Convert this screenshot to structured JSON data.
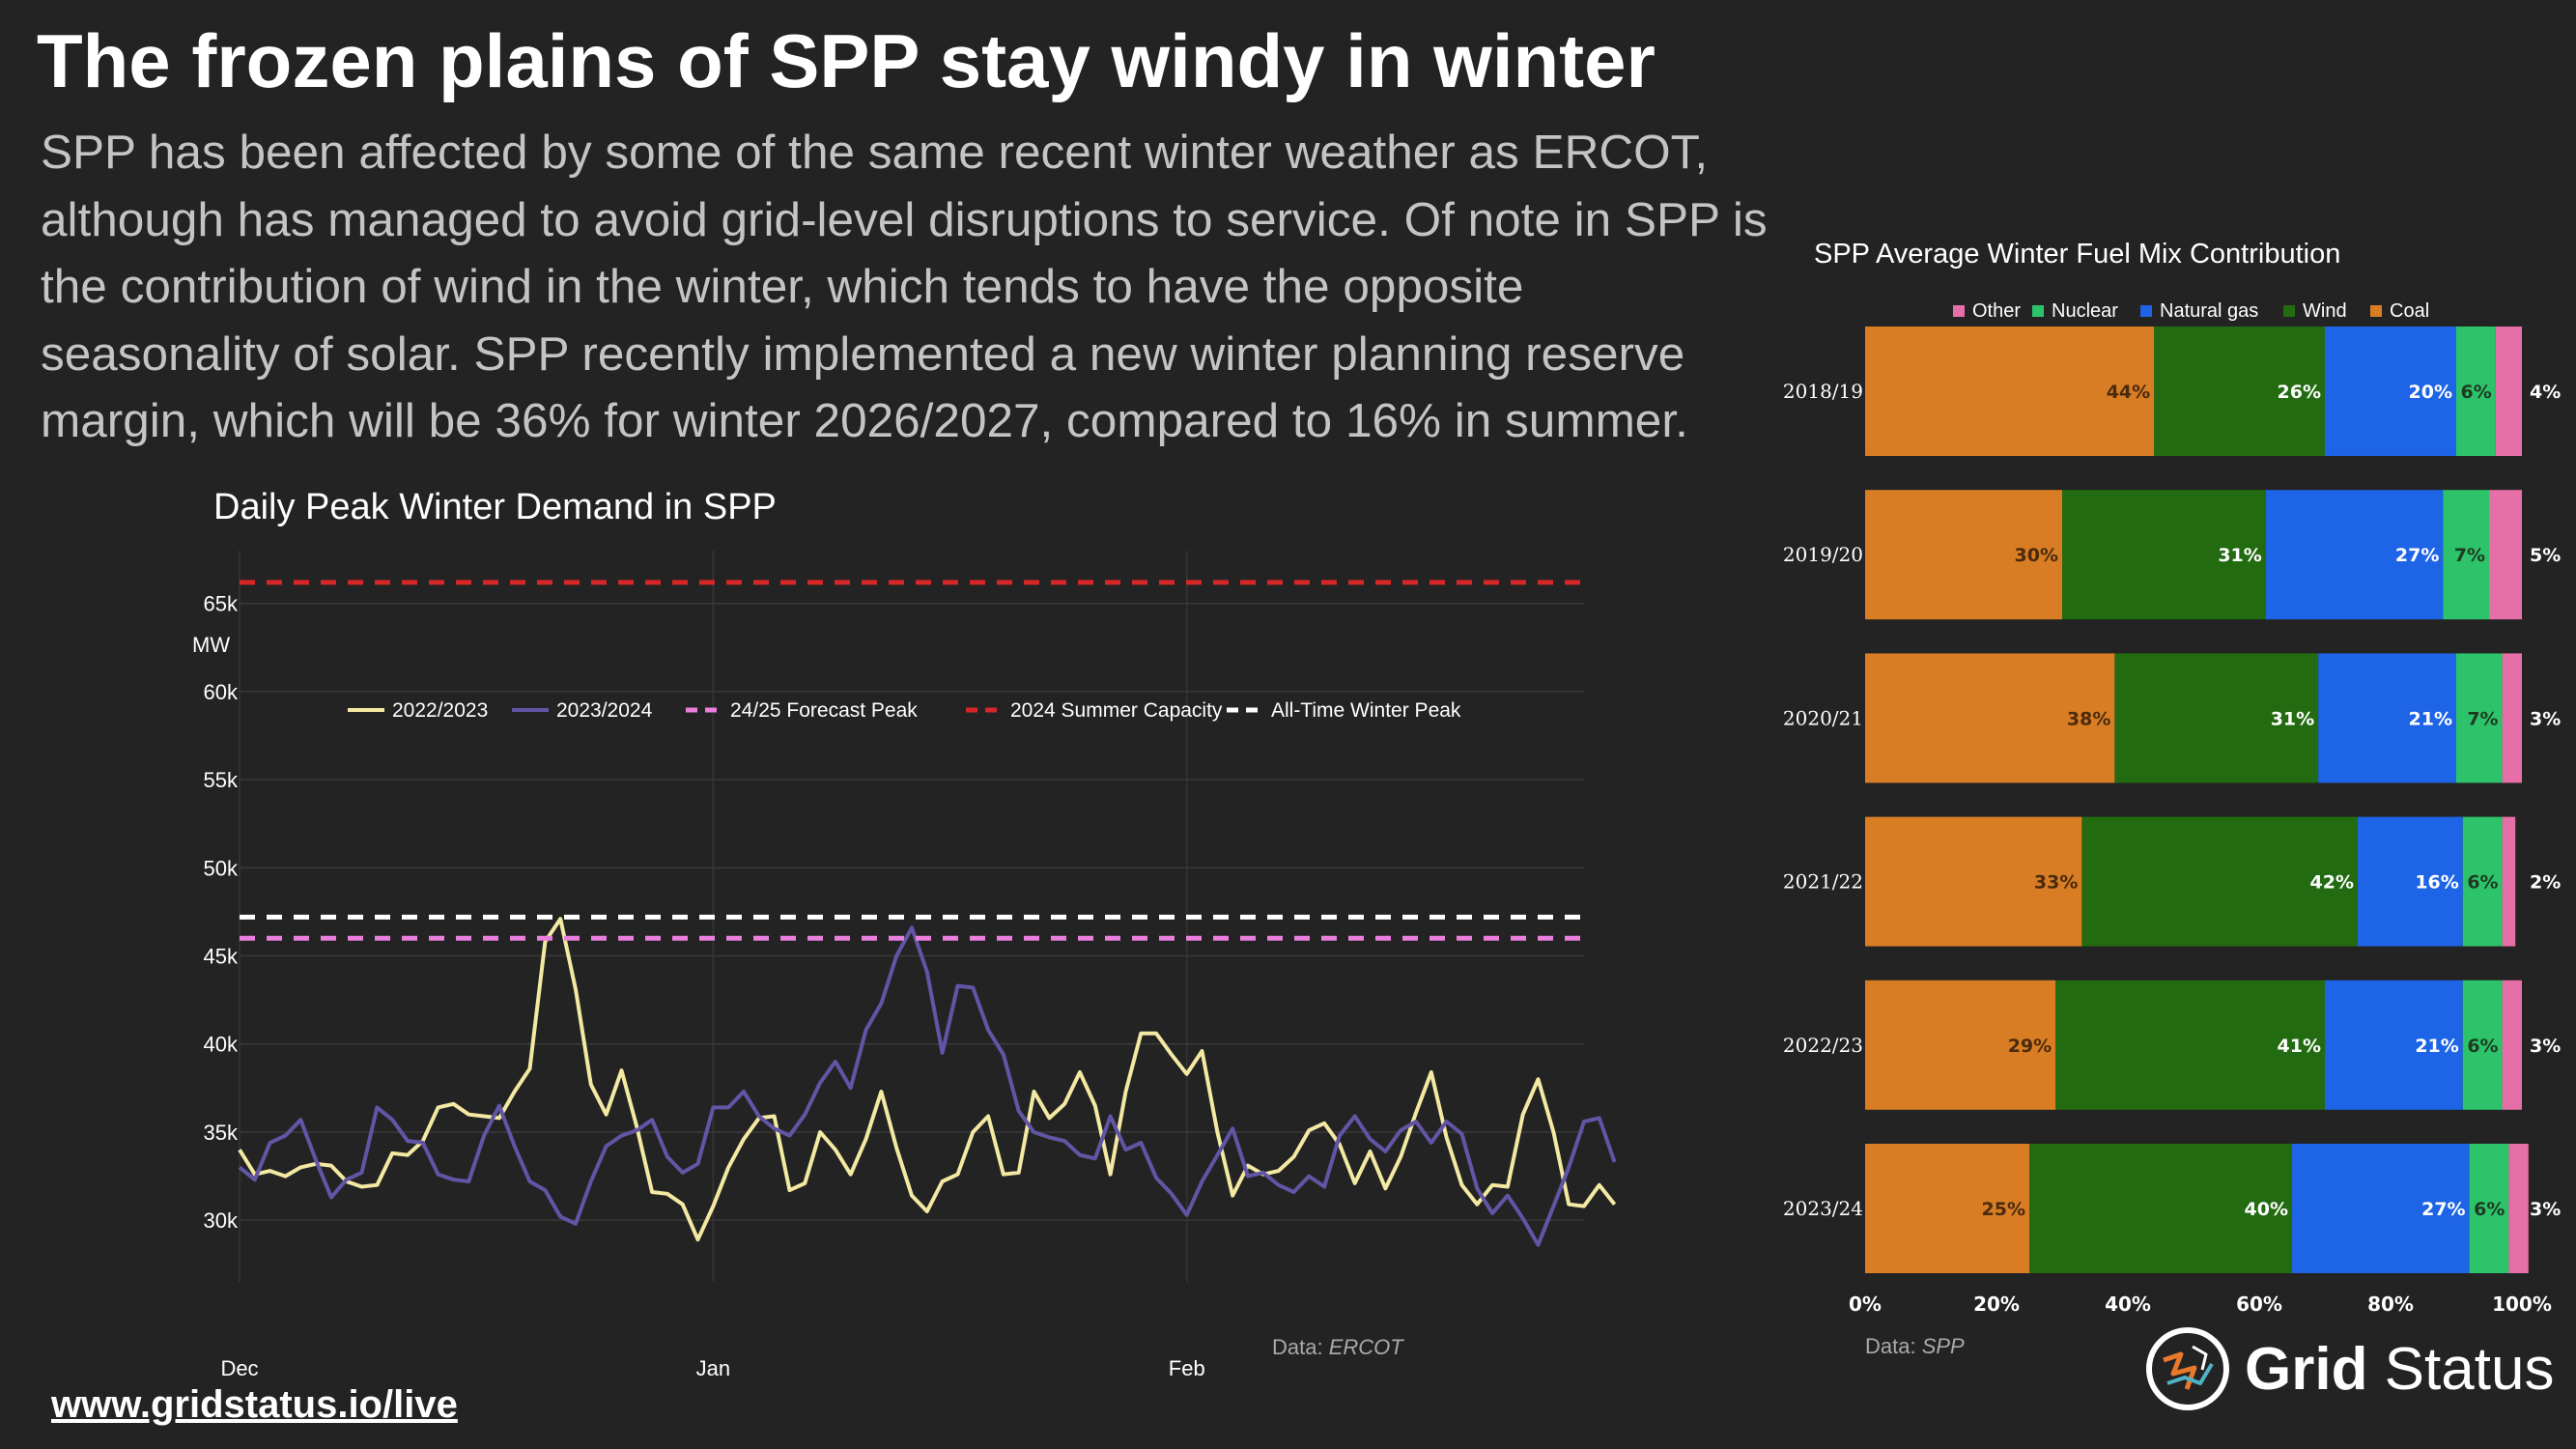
{
  "header": {
    "title": "The frozen plains of SPP stay windy in winter",
    "subtitle": "SPP has been affected by some of the same recent winter weather as ERCOT, although has managed to avoid grid-level disruptions to service. Of note in SPP is the contribution of wind in the winter, which tends to have the opposite seasonality of solar. SPP recently implemented a new winter planning reserve margin, which will be 36% for winter 2026/2027, compared to 16% in summer."
  },
  "footer": {
    "url": "www.gridstatus.io/live"
  },
  "logo": {
    "brand_bold": "Grid",
    "brand_rest": " Status",
    "icon": "grid-status-logo-icon"
  },
  "chart_data": [
    {
      "type": "line",
      "title": "Daily Peak Winter Demand in SPP",
      "ylabel": "MW",
      "ylim": [
        26500,
        68000
      ],
      "yticks": [
        30000,
        35000,
        40000,
        45000,
        50000,
        55000,
        60000,
        65000
      ],
      "ytick_labels": [
        "30k",
        "35k",
        "40k",
        "45k",
        "50k",
        "55k",
        "60k",
        "65k"
      ],
      "x_day_range": [
        0,
        88
      ],
      "xticks": [
        {
          "day": 0,
          "label": "Dec"
        },
        {
          "day": 31,
          "label": "Jan"
        },
        {
          "day": 62,
          "label": "Feb"
        }
      ],
      "source_prefix": "Data: ",
      "source": "ERCOT",
      "series": [
        {
          "name": "2022/2023",
          "color": "#f3e9a3",
          "values": [
            34000,
            32600,
            32800,
            32500,
            33000,
            33200,
            33100,
            32200,
            31900,
            32000,
            33800,
            33700,
            34500,
            36400,
            36600,
            36000,
            35900,
            35800,
            37300,
            38600,
            45800,
            47100,
            43100,
            37700,
            36000,
            38500,
            35300,
            31600,
            31500,
            30900,
            28900,
            30800,
            33000,
            34600,
            35800,
            35900,
            31700,
            32100,
            35000,
            34000,
            32600,
            34600,
            37300,
            34100,
            31400,
            30500,
            32200,
            32600,
            35000,
            35900,
            32600,
            32700,
            37300,
            35800,
            36600,
            38400,
            36500,
            32600,
            37300,
            40600,
            40600,
            39400,
            38300,
            39600,
            35000,
            31400,
            33100,
            32600,
            32800,
            33600,
            35100,
            35500,
            34300,
            32100,
            33900,
            31800,
            33600,
            36100,
            38400,
            34700,
            32000,
            30900,
            32000,
            31900,
            36000,
            38000,
            35000,
            30900,
            30800,
            32000,
            30900
          ]
        },
        {
          "name": "2023/2024",
          "color": "#6355a6",
          "values": [
            33000,
            32300,
            34400,
            34800,
            35700,
            33400,
            31300,
            32300,
            32700,
            36400,
            35700,
            34500,
            34400,
            32600,
            32300,
            32200,
            34800,
            36500,
            34200,
            32200,
            31700,
            30200,
            29800,
            32200,
            34200,
            34800,
            35100,
            35700,
            33600,
            32700,
            33200,
            36400,
            36400,
            37300,
            35900,
            35200,
            34800,
            36000,
            37800,
            39000,
            37500,
            40800,
            42300,
            45000,
            46600,
            44100,
            39500,
            43300,
            43200,
            40800,
            39400,
            36200,
            35000,
            34700,
            34500,
            33700,
            33500,
            35900,
            34000,
            34400,
            32400,
            31500,
            30300,
            32200,
            33700,
            35200,
            32500,
            32700,
            32000,
            31600,
            32500,
            31900,
            34800,
            35900,
            34600,
            33900,
            35100,
            35600,
            34400,
            35600,
            34900,
            31800,
            30400,
            31400,
            30100,
            28600,
            30800,
            33000,
            35600,
            35800,
            33300
          ]
        },
        {
          "name": "24/25 Forecast Peak",
          "color": "#ea7fde",
          "value": 46000,
          "style": "dashed"
        },
        {
          "name": "2024 Summer Capacity",
          "color": "#d62728",
          "value": 66200,
          "style": "dashed"
        },
        {
          "name": "All-Time Winter Peak",
          "color": "#ffffff",
          "value": 47200,
          "style": "dashed"
        }
      ]
    },
    {
      "type": "bar",
      "orientation": "horizontal",
      "stacked": true,
      "title": "SPP Average Winter Fuel Mix Contribution",
      "categories": [
        "2018/19",
        "2019/20",
        "2020/21",
        "2021/22",
        "2022/23",
        "2023/24"
      ],
      "xlim": [
        0,
        100
      ],
      "xticks": [
        "0%",
        "20%",
        "40%",
        "60%",
        "80%",
        "100%"
      ],
      "source_prefix": "Data: ",
      "source": "SPP",
      "legend_order": [
        "Other",
        "Nuclear",
        "Natural gas",
        "Wind",
        "Coal"
      ],
      "series": [
        {
          "name": "Coal",
          "color": "#d87d24",
          "label_color": "#4a2a0d",
          "values": [
            44,
            30,
            38,
            33,
            29,
            25
          ]
        },
        {
          "name": "Wind",
          "color": "#236b11",
          "label_color": "#ffffff",
          "values": [
            26,
            31,
            31,
            42,
            41,
            40
          ]
        },
        {
          "name": "Natural gas",
          "color": "#1e64e6",
          "label_color": "#ffffff",
          "values": [
            20,
            27,
            21,
            16,
            21,
            27
          ]
        },
        {
          "name": "Nuclear",
          "color": "#2dc36a",
          "label_color": "#1e3a22",
          "values": [
            6,
            7,
            7,
            6,
            6,
            6
          ]
        },
        {
          "name": "Other",
          "color": "#e76fa8",
          "label_color": "#ffffff",
          "values": [
            4,
            5,
            3,
            2,
            3,
            3
          ]
        }
      ]
    }
  ]
}
